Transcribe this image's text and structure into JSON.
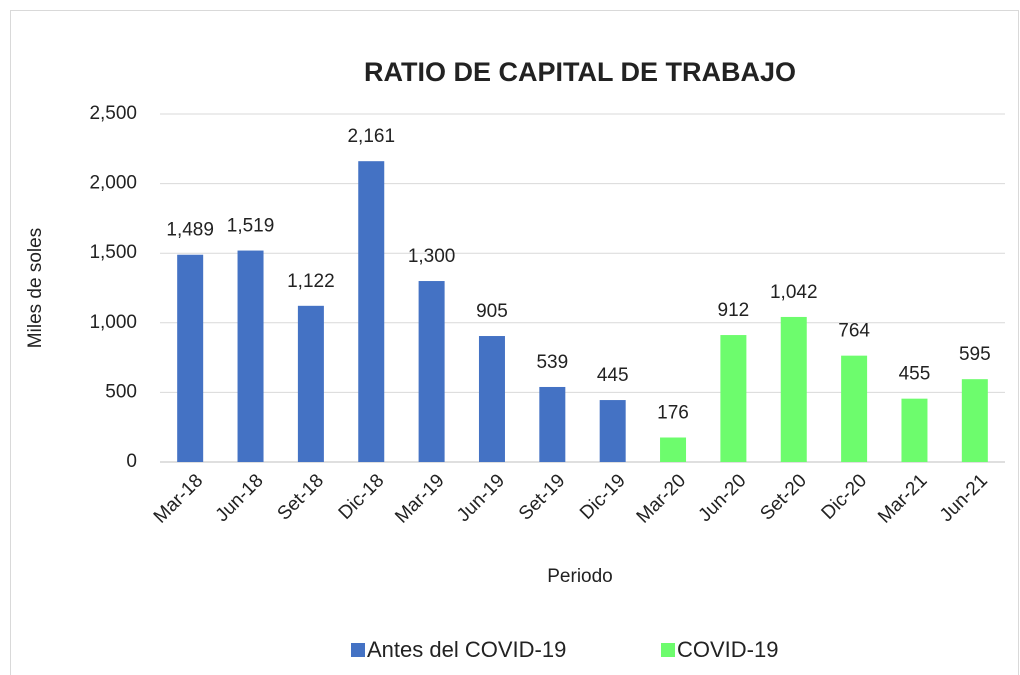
{
  "chart_data": {
    "type": "bar",
    "title": "RATIO DE CAPITAL DE TRABAJO",
    "x_label": "Periodo",
    "y_label": "Miles de soles",
    "categories": [
      "Mar-18",
      "Jun-18",
      "Set-18",
      "Dic-18",
      "Mar-19",
      "Jun-19",
      "Set-19",
      "Dic-19",
      "Mar-20",
      "Jun-20",
      "Set-20",
      "Dic-20",
      "Mar-21",
      "Jun-21"
    ],
    "series": [
      {
        "name": "Antes del COVID-19",
        "color": "#4472c4",
        "values": [
          1489,
          1519,
          1122,
          2161,
          1300,
          905,
          539,
          445,
          null,
          null,
          null,
          null,
          null,
          null
        ],
        "value_labels": [
          "1,489",
          "1,519",
          "1,122",
          "2,161",
          "1,300",
          "905",
          "539",
          "445",
          null,
          null,
          null,
          null,
          null,
          null
        ]
      },
      {
        "name": "COVID-19",
        "color": "#6dfc6d",
        "values": [
          null,
          null,
          null,
          null,
          null,
          null,
          null,
          null,
          176,
          912,
          1042,
          764,
          455,
          595
        ],
        "value_labels": [
          null,
          null,
          null,
          null,
          null,
          null,
          null,
          null,
          "176",
          "912",
          "1,042",
          "764",
          "455",
          "595"
        ]
      }
    ],
    "ylim": [
      0,
      2500
    ],
    "yticks": [
      0,
      500,
      {
        "value": 1000,
        "label": "1,000"
      },
      {
        "value": 1500,
        "label": "1,500"
      },
      {
        "value": 2000,
        "label": "2,000"
      },
      {
        "value": 2500,
        "label": "2,500"
      }
    ],
    "grid": true,
    "legend": "bottom"
  }
}
